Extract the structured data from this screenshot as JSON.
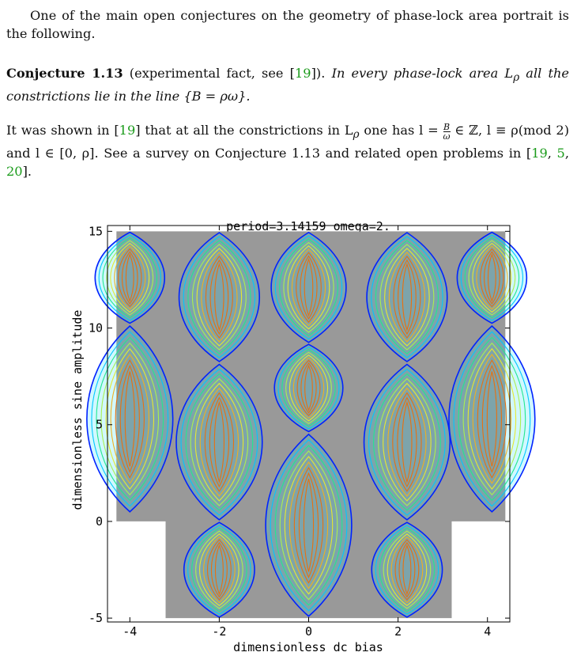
{
  "intro_paragraph": "One of the main open conjectures on the geometry of phase-lock area portrait is the following.",
  "conjecture": {
    "label": "Conjecture 1.13",
    "note_prefix": "(experimental fact, see [",
    "note_cite": "19",
    "note_suffix": "]).",
    "statement": "In every phase-lock area L",
    "statement_sub": "ρ",
    "statement_rest": "all the constrictions lie in the line {B = ρω}."
  },
  "result_paragraph": {
    "part1": "It was shown in [",
    "cite1": "19",
    "part2": "] that at all the constrictions in L",
    "sub1": "ρ",
    "part3": " one has l = ",
    "frac_num": "B",
    "frac_den": "ω",
    "part4": " ∈ ℤ, l ≡ ρ(mod 2) and l ∈ [0, ρ]. See a survey on Conjecture 1.13 and related open problems in [",
    "cite2": "19",
    "sep1": ", ",
    "cite3": "5",
    "sep2": ", ",
    "cite4": "20",
    "part5": "]."
  },
  "chart_data": {
    "type": "contour",
    "title": "period=3.14159 omega=2.",
    "xlabel": "dimensionless dc bias",
    "ylabel": "dimensionless sine amplitude",
    "xlim": [
      -4.5,
      4.5
    ],
    "ylim": [
      -5.2,
      15.3
    ],
    "xticks": [
      -4,
      -2,
      0,
      2,
      4
    ],
    "yticks": [
      -5,
      0,
      5,
      10,
      15
    ],
    "grid": false,
    "background_region_color": "#999999",
    "contour_colors": [
      "#0022ff",
      "#00c8ff",
      "#22e890",
      "#aaf050",
      "#e6e830",
      "#f0b020",
      "#e87010"
    ],
    "phase_lock_areas": [
      {
        "center_x": 0,
        "constrictions_y": [
          -5,
          4.6,
          9.2,
          15
        ],
        "lobes": [
          [
            -5,
            4.6
          ],
          [
            4.6,
            9.2
          ],
          [
            9.2,
            15
          ]
        ]
      },
      {
        "center_x": -2,
        "constrictions_y": [
          -5,
          0,
          8.2,
          15
        ],
        "lobes": [
          [
            -5,
            0
          ],
          [
            0,
            8.2
          ],
          [
            8.2,
            15
          ]
        ]
      },
      {
        "center_x": 2.2,
        "constrictions_y": [
          -5,
          0,
          8.2,
          15
        ],
        "lobes": [
          [
            -5,
            0
          ],
          [
            0,
            8.2
          ],
          [
            8.2,
            15
          ]
        ]
      },
      {
        "center_x": -4,
        "constrictions_y": [
          0.4,
          10.2,
          15
        ],
        "lobes": [
          [
            0.4,
            10.2
          ],
          [
            10.2,
            15
          ]
        ]
      },
      {
        "center_x": 4.1,
        "constrictions_y": [
          0.4,
          10.2,
          15
        ],
        "lobes": [
          [
            0.4,
            10.2
          ],
          [
            10.2,
            15
          ]
        ]
      }
    ]
  }
}
